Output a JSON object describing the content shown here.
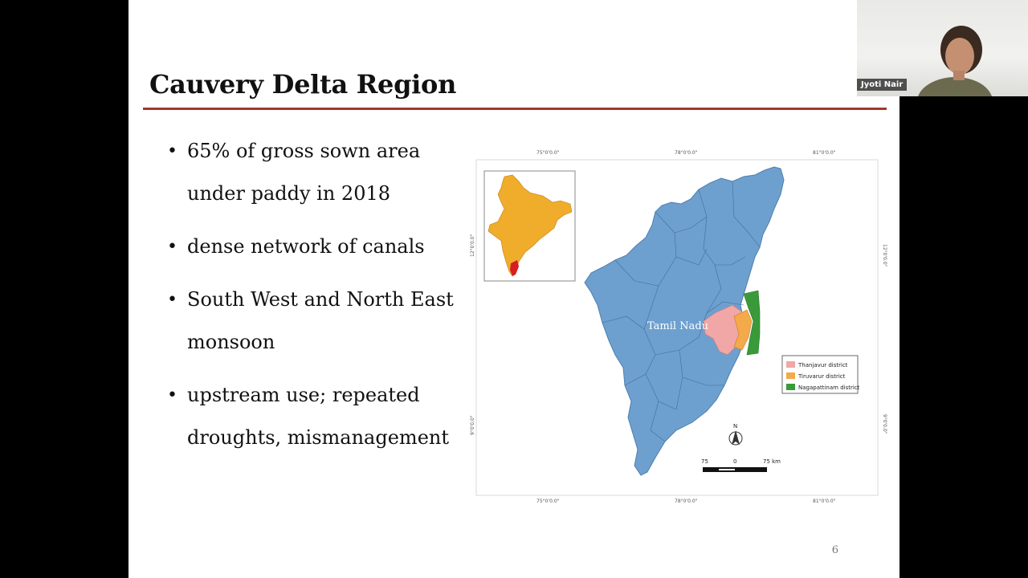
{
  "slide": {
    "title": "Cauvery Delta Region",
    "page_number": "6",
    "bullets": [
      {
        "line1": "65% of gross sown area",
        "line2": "under paddy in 2018"
      },
      {
        "line1": "dense network of canals",
        "line2": ""
      },
      {
        "line1": "South West and North East",
        "line2": "monsoon"
      },
      {
        "line1": "upstream use; repeated",
        "line2": "droughts, mismanagement"
      }
    ],
    "bullet_glyph": "•"
  },
  "map": {
    "region_label": "Tamil Nadu",
    "top_coords": [
      "75°0'0.0\"",
      "78°0'0.0\"",
      "81°0'0.0\""
    ],
    "bottom_coords": [
      "75°0'0.0\"",
      "78°0'0.0\"",
      "81°0'0.0\""
    ],
    "left_coords": [
      "12°0'0.0\"",
      "9°0'0.0\""
    ],
    "right_coords": [
      "12°0'0.0\"",
      "9°0'0.0\""
    ],
    "legend": [
      {
        "label": "Thanjavur district",
        "color": "#f1a7a5"
      },
      {
        "label": "Tiruvarur district",
        "color": "#f4a94a"
      },
      {
        "label": "Nagapattinam district",
        "color": "#3a9a3a"
      }
    ],
    "north_label": "N",
    "scale": {
      "left": "75",
      "mid": "0",
      "right": "75 km"
    },
    "colors": {
      "state": "#6ea0cf",
      "india": "#f0ad2c",
      "tn_highlight": "#d61f1f"
    }
  },
  "webcam": {
    "participant_name": "Jyoti Nair"
  }
}
